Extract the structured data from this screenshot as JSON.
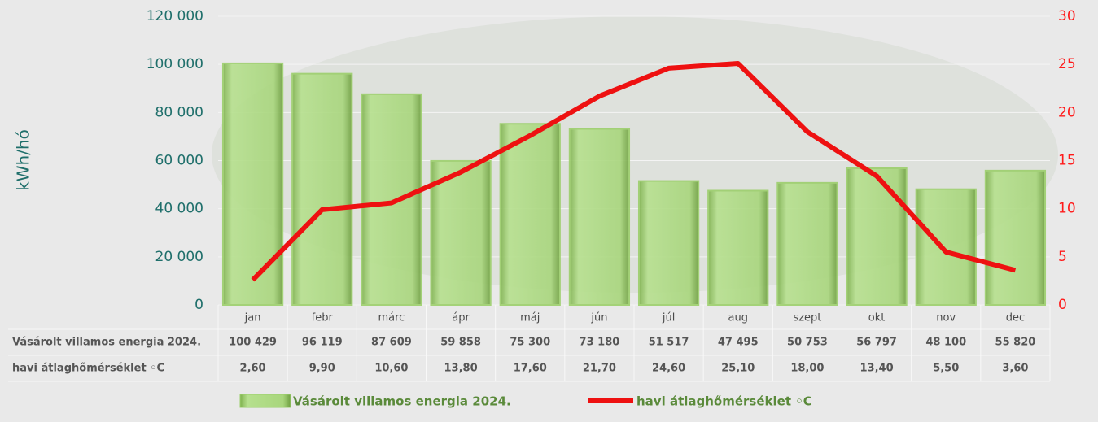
{
  "chart_data": {
    "type": "bar_line",
    "y_label": "kWh/hó",
    "categories": [
      "jan",
      "febr",
      "márc",
      "ápr",
      "máj",
      "jún",
      "júl",
      "aug",
      "szept",
      "okt",
      "nov",
      "dec"
    ],
    "series": [
      {
        "name": "Vásárolt villamos energia 2024.",
        "type": "bar",
        "color": "#9ccf6c",
        "values": [
          100429,
          96119,
          87609,
          59858,
          75300,
          73180,
          51517,
          47495,
          50753,
          56797,
          48100,
          55820
        ],
        "value_labels": [
          "100 429",
          "96 119",
          "87 609",
          "59 858",
          "75 300",
          "73 180",
          "51 517",
          "47 495",
          "50 753",
          "56 797",
          "48 100",
          "55 820"
        ]
      },
      {
        "name": "havi átlaghőmérséklet ◦C",
        "type": "line",
        "axis": "y2",
        "color": "#ee1111",
        "values": [
          2.6,
          9.9,
          10.6,
          13.8,
          17.6,
          21.7,
          24.6,
          25.1,
          18.0,
          13.4,
          5.5,
          3.6
        ],
        "value_labels": [
          "2,60",
          "9,90",
          "10,60",
          "13,80",
          "17,60",
          "21,70",
          "24,60",
          "25,10",
          "18,00",
          "13,40",
          "5,50",
          "3,60"
        ]
      }
    ],
    "ylim": [
      0,
      120000
    ],
    "yticks": [
      0,
      {
        "value": 20000,
        "label": "20 000"
      },
      {
        "value": 40000,
        "label": "40 000"
      },
      {
        "value": 60000,
        "label": "60 000"
      },
      {
        "value": 80000,
        "label": "80 000"
      },
      {
        "value": 100000,
        "label": "100 000"
      },
      {
        "value": 120000,
        "label": "120 000"
      }
    ],
    "y2lim": [
      0,
      30
    ],
    "y2ticks": [
      0,
      5,
      10,
      15,
      20,
      25,
      30
    ]
  }
}
